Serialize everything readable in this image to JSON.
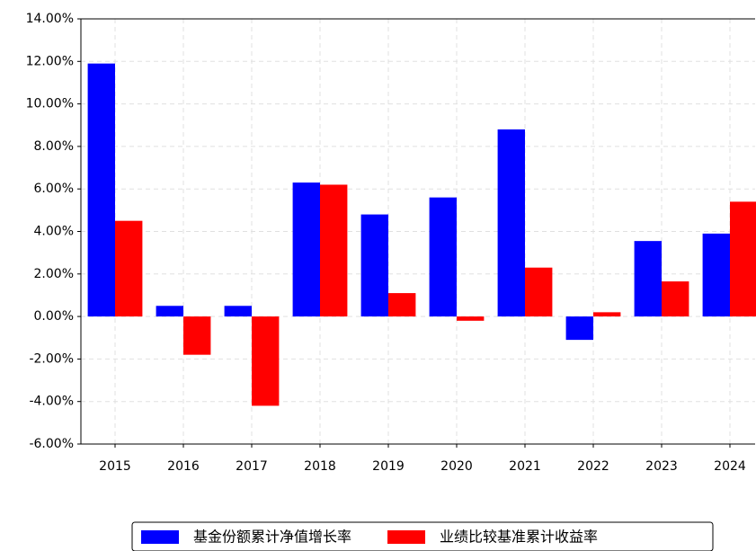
{
  "chart_data": {
    "type": "bar",
    "categories": [
      "2015",
      "2016",
      "2017",
      "2018",
      "2019",
      "2020",
      "2021",
      "2022",
      "2023",
      "2024"
    ],
    "series": [
      {
        "name": "基金份额累计净值增长率",
        "color": "#0000ff",
        "values": [
          11.9,
          0.5,
          0.5,
          6.3,
          4.8,
          5.6,
          8.8,
          -1.1,
          3.55,
          3.9
        ]
      },
      {
        "name": "业绩比较基准累计收益率",
        "color": "#ff0000",
        "values": [
          4.5,
          -1.8,
          -4.2,
          6.2,
          1.1,
          -0.2,
          2.3,
          0.2,
          1.65,
          5.4
        ]
      }
    ],
    "ylim": [
      -6,
      14
    ],
    "yticks": [
      {
        "value": -6,
        "label": "-6.00%"
      },
      {
        "value": -4,
        "label": "-4.00%"
      },
      {
        "value": -2,
        "label": "-2.00%"
      },
      {
        "value": 0,
        "label": "0.00%"
      },
      {
        "value": 2,
        "label": "2.00%"
      },
      {
        "value": 4,
        "label": "4.00%"
      },
      {
        "value": 6,
        "label": "6.00%"
      },
      {
        "value": 8,
        "label": "8.00%"
      },
      {
        "value": 10,
        "label": "10.00%"
      },
      {
        "value": 12,
        "label": "12.00%"
      },
      {
        "value": 14,
        "label": "14.00%"
      }
    ],
    "grid": true,
    "legend": "bottom"
  }
}
